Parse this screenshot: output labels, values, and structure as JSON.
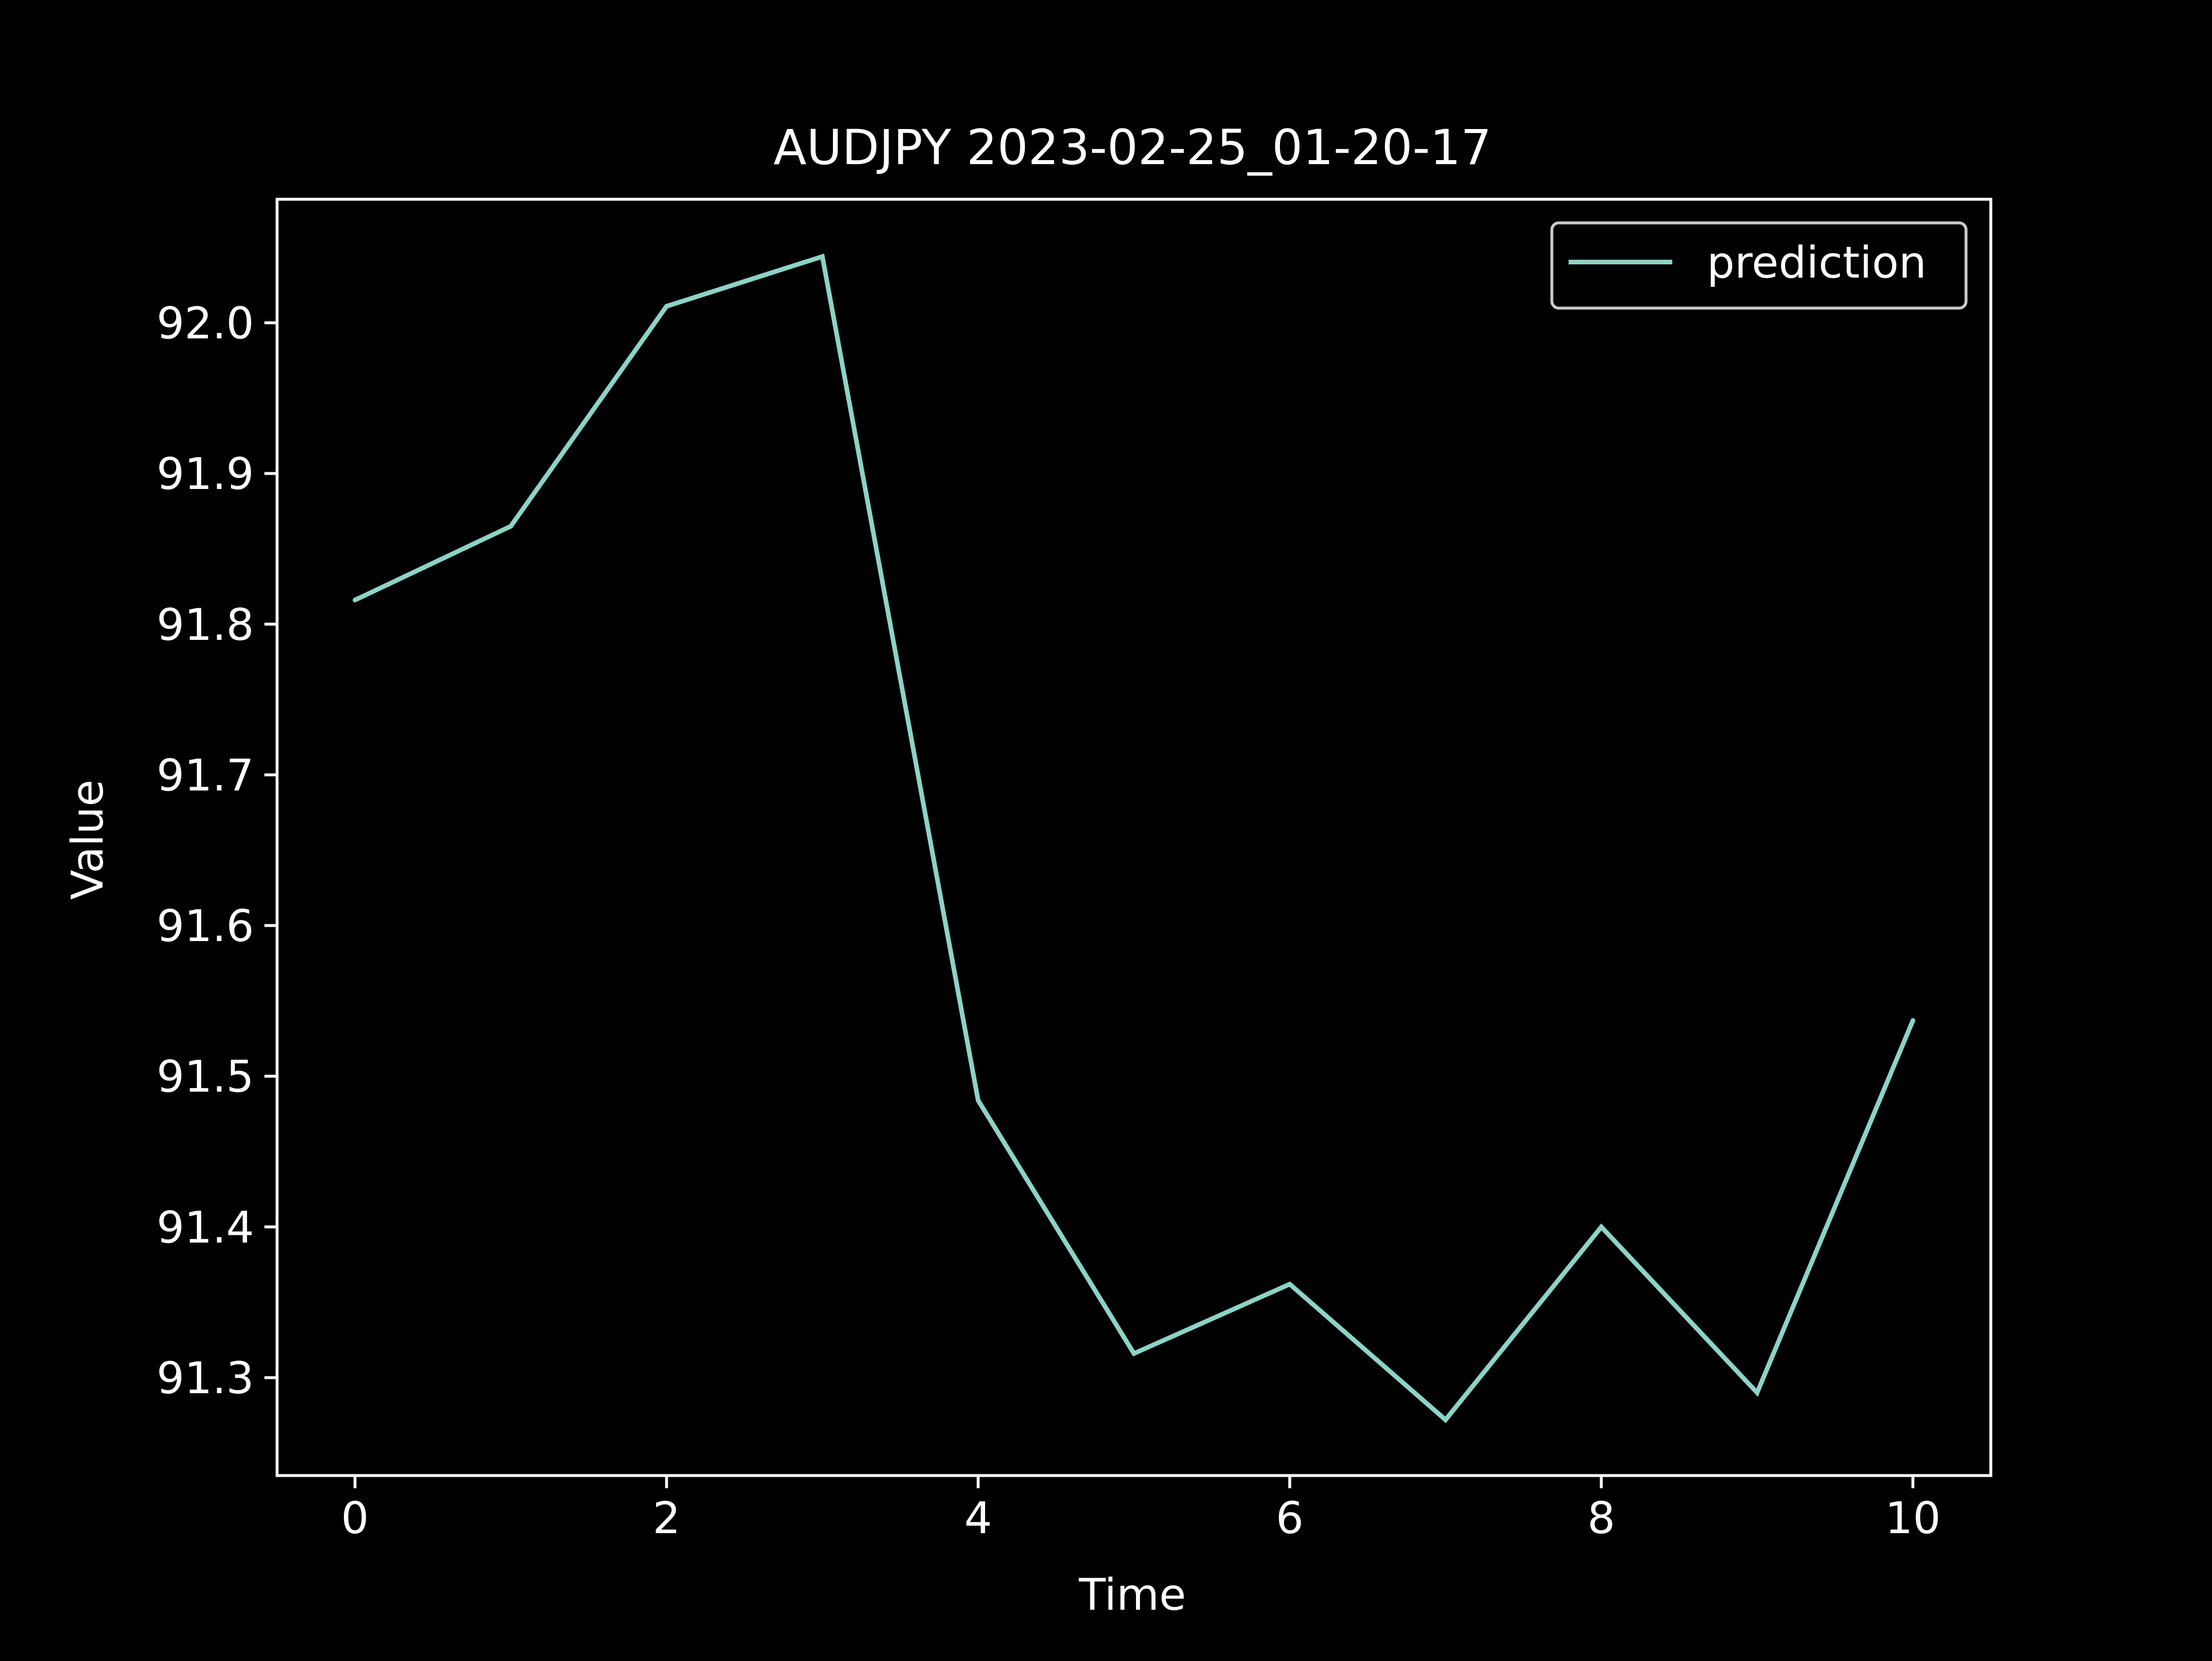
{
  "chart_data": {
    "type": "line",
    "title": "AUDJPY 2023-02-25_01-20-17",
    "xlabel": "Time",
    "ylabel": "Value",
    "x": [
      0,
      1,
      2,
      3,
      4,
      5,
      6,
      7,
      8,
      9,
      10
    ],
    "series": [
      {
        "name": "prediction",
        "values": [
          91.816,
          91.865,
          92.011,
          92.044,
          91.484,
          91.316,
          91.362,
          91.272,
          91.4,
          91.29,
          91.537
        ]
      }
    ],
    "xlim": [
      -0.5,
      10.5
    ],
    "ylim": [
      91.235,
      92.082
    ],
    "xticks": [
      "0",
      "2",
      "4",
      "6",
      "8",
      "10"
    ],
    "yticks": [
      "91.3",
      "91.4",
      "91.5",
      "91.6",
      "91.7",
      "91.8",
      "91.9",
      "92.0"
    ],
    "grid": false,
    "legend_position": "top-right",
    "colors": {
      "background": "#000000",
      "axes": "#ffffff",
      "text": "#ffffff",
      "series": "#8dd3c7",
      "legend_border": "#cccccc"
    }
  }
}
